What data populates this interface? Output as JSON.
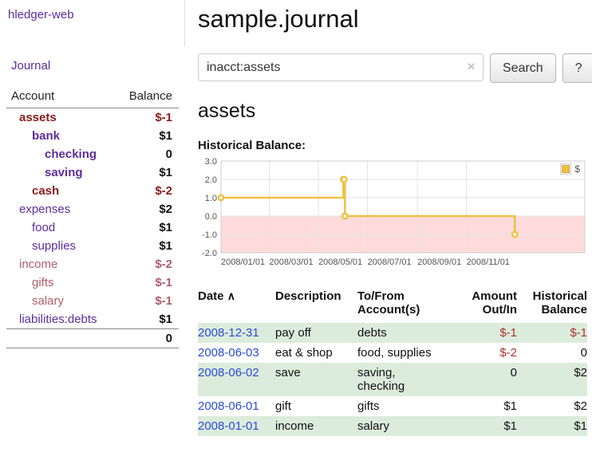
{
  "colors": {
    "link_purple": "#5c2d9c",
    "link_blue": "#2b4cd8",
    "negative_dark": "#8c1c1c",
    "negative_red": "#b0342c",
    "negative_rose": "#b05d6d",
    "row_green": "#dcecdc",
    "chart_line": "#edc240",
    "chart_negative_bg": "#ffdbdb"
  },
  "sidebar": {
    "app_title": "hledger-web",
    "journal_link": "Journal",
    "table_header": {
      "account": "Account",
      "balance": "Balance"
    },
    "accounts": [
      {
        "name": "assets",
        "balance": "$-1"
      },
      {
        "name": "bank",
        "balance": "$1"
      },
      {
        "name": "checking",
        "balance": "0"
      },
      {
        "name": "saving",
        "balance": "$1"
      },
      {
        "name": "cash",
        "balance": "$-2"
      },
      {
        "name": "expenses",
        "balance": "$2"
      },
      {
        "name": "food",
        "balance": "$1"
      },
      {
        "name": "supplies",
        "balance": "$1"
      },
      {
        "name": "income",
        "balance": "$-2"
      },
      {
        "name": "gifts",
        "balance": "$-1"
      },
      {
        "name": "salary",
        "balance": "$-1"
      },
      {
        "name": "liabilities:debts",
        "balance": "$1"
      }
    ],
    "total": "0"
  },
  "main": {
    "title": "sample.journal",
    "search": {
      "value": "inacct:assets",
      "clear": "✕",
      "button_label": "Search",
      "help_label": "?"
    },
    "account_heading": "assets",
    "chart_title": "Historical Balance:"
  },
  "chart_data": {
    "type": "line",
    "style": "steps",
    "title": "Historical Balance",
    "legend": [
      {
        "label": "$"
      }
    ],
    "color": "#edc240",
    "negative_region_color": "#ffdbdb",
    "ylim": [
      -2,
      3
    ],
    "y_ticks": [
      "3.0",
      "2.0",
      "1.0",
      "0.0",
      "-1.0",
      "-2.0"
    ],
    "x_tick_labels": [
      "2008/01/01",
      "2008/03/01",
      "2008/05/01",
      "2008/07/01",
      "2008/09/01",
      "2008/11/01"
    ],
    "x_tick_days": [
      0,
      60,
      121,
      182,
      244,
      305
    ],
    "xlim_days": [
      0,
      452
    ],
    "series": [
      {
        "name": "$",
        "points": [
          {
            "date": "2008-01-01",
            "day": 0,
            "value": 1
          },
          {
            "date": "2008-06-01",
            "day": 152,
            "value": 2
          },
          {
            "date": "2008-06-02",
            "day": 153,
            "value": 2
          },
          {
            "date": "2008-06-03",
            "day": 154,
            "value": 0
          },
          {
            "date": "2008-12-31",
            "day": 365,
            "value": -1
          }
        ]
      }
    ]
  },
  "register": {
    "headers": {
      "date": "Date",
      "sort_indicator": "∧",
      "description": "Description",
      "account": "To/From\nAccount(s)",
      "amount": "Amount\nOut/In",
      "balance": "Historical\nBalance"
    },
    "rows": [
      {
        "date": "2008-12-31",
        "description": "pay off",
        "accounts": "debts",
        "amount": "$-1",
        "balance": "$-1"
      },
      {
        "date": "2008-06-03",
        "description": "eat & shop",
        "accounts": "food, supplies",
        "amount": "$-2",
        "balance": "0"
      },
      {
        "date": "2008-06-02",
        "description": "save",
        "accounts": "saving,\nchecking",
        "amount": "0",
        "balance": "$2"
      },
      {
        "date": "2008-06-01",
        "description": "gift",
        "accounts": "gifts",
        "amount": "$1",
        "balance": "$2"
      },
      {
        "date": "2008-01-01",
        "description": "income",
        "accounts": "salary",
        "amount": "$1",
        "balance": "$1"
      }
    ]
  }
}
